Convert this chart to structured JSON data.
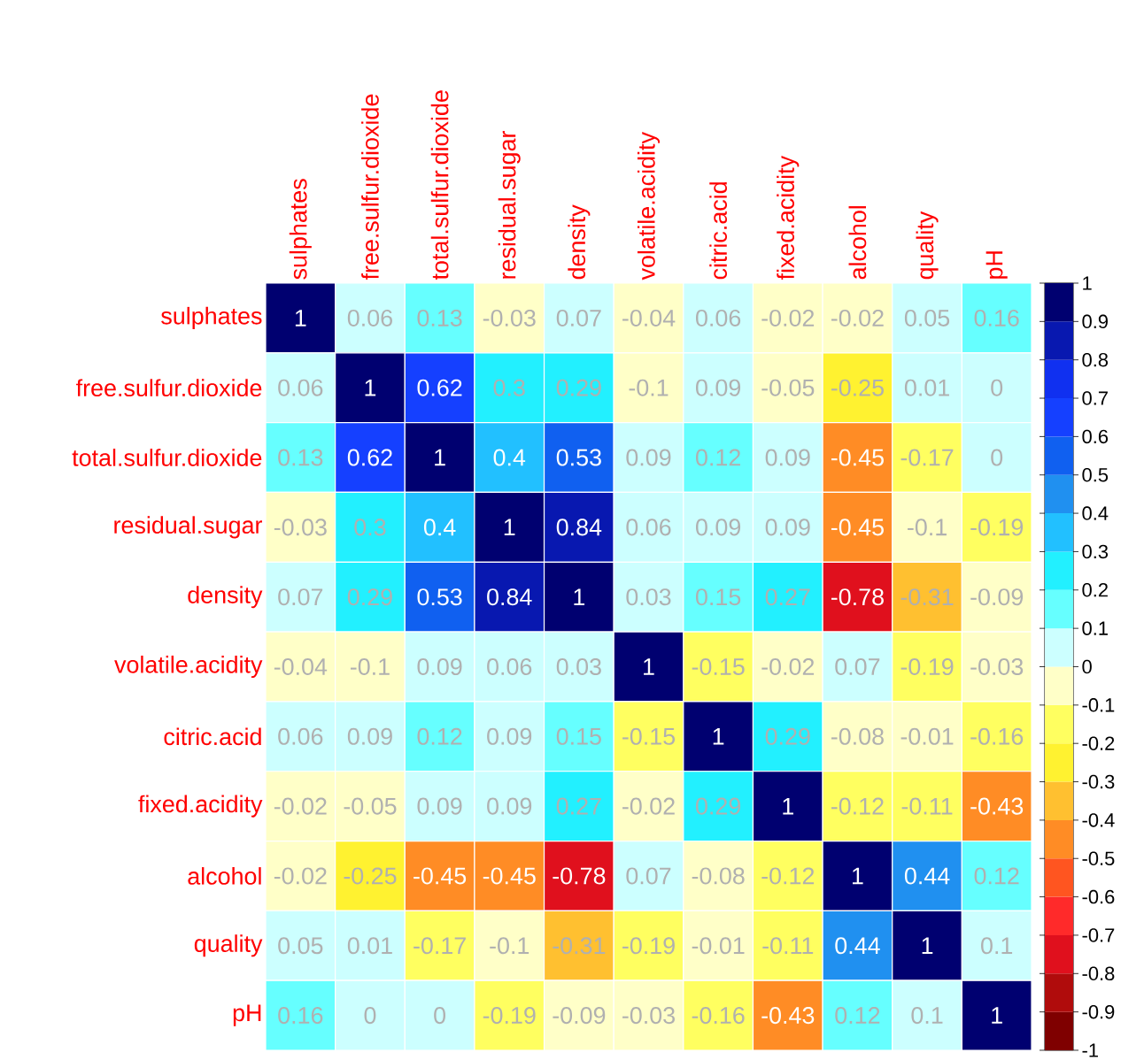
{
  "chart_data": {
    "type": "heatmap",
    "categories": [
      "sulphates",
      "free.sulfur.dioxide",
      "total.sulfur.dioxide",
      "residual.sugar",
      "density",
      "volatile.acidity",
      "citric.acid",
      "fixed.acidity",
      "alcohol",
      "quality",
      "pH"
    ],
    "y_categories": [
      "sulphates",
      "free.sulfur.dioxide",
      "total.sulfur.dioxide",
      "residual.sugar",
      "density",
      "volatile.acidity",
      "citric.acid",
      "fixed.acidity",
      "alcohol",
      "quality",
      "pH"
    ],
    "cells": [
      [
        1,
        0.06,
        0.13,
        -0.03,
        0.07,
        -0.04,
        0.06,
        -0.02,
        -0.02,
        0.05,
        0.16
      ],
      [
        0.06,
        1,
        0.62,
        0.3,
        0.29,
        -0.1,
        0.09,
        -0.05,
        -0.25,
        0.01,
        0
      ],
      [
        0.13,
        0.62,
        1,
        0.4,
        0.53,
        0.09,
        0.12,
        0.09,
        -0.45,
        -0.17,
        0
      ],
      [
        -0.03,
        0.3,
        0.4,
        1,
        0.84,
        0.06,
        0.09,
        0.09,
        -0.45,
        -0.1,
        -0.19
      ],
      [
        0.07,
        0.29,
        0.53,
        0.84,
        1,
        0.03,
        0.15,
        0.27,
        -0.78,
        -0.31,
        -0.09
      ],
      [
        -0.04,
        -0.1,
        0.09,
        0.06,
        0.03,
        1,
        -0.15,
        -0.02,
        0.07,
        -0.19,
        -0.03
      ],
      [
        0.06,
        0.09,
        0.12,
        0.09,
        0.15,
        -0.15,
        1,
        0.29,
        -0.08,
        -0.01,
        -0.16
      ],
      [
        -0.02,
        -0.05,
        0.09,
        0.09,
        0.27,
        -0.02,
        0.29,
        1,
        -0.12,
        -0.11,
        -0.43
      ],
      [
        -0.02,
        -0.25,
        -0.45,
        -0.45,
        -0.78,
        0.07,
        -0.08,
        -0.12,
        1,
        0.44,
        0.12
      ],
      [
        0.05,
        0.01,
        -0.17,
        -0.1,
        -0.31,
        -0.19,
        -0.01,
        -0.11,
        0.44,
        1,
        0.1
      ],
      [
        0.16,
        0,
        0,
        -0.19,
        -0.09,
        -0.03,
        -0.16,
        -0.43,
        0.12,
        0.1,
        1
      ]
    ],
    "clim": [
      -1,
      1
    ],
    "cticks": [
      -1,
      -0.9,
      -0.8,
      -0.7,
      -0.6,
      -0.5,
      -0.4,
      -0.3,
      -0.2,
      -0.1,
      0,
      0.1,
      0.2,
      0.3,
      0.4,
      0.5,
      0.6,
      0.7,
      0.8,
      0.9,
      1
    ],
    "data_labels": true
  }
}
